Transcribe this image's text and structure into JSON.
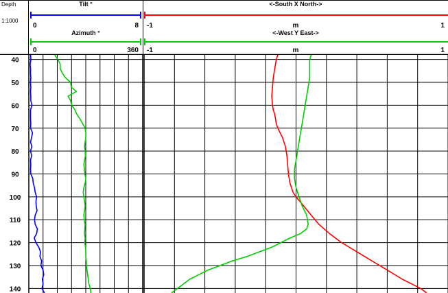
{
  "header": {
    "depth_label": "Depth",
    "scale_label": "1:1000",
    "tilt": {
      "title": "Tilt °",
      "min": "0",
      "max": "8",
      "color": "#0000ff"
    },
    "azimuth": {
      "title": "Azimuth °",
      "min": "0",
      "max": "360",
      "color": "#00cc00"
    },
    "x_track": {
      "title": "<-South  X  North->",
      "unit": "m",
      "min": "-1",
      "max": "1",
      "color": "#ff0000"
    },
    "y_track": {
      "title": "<-West  Y  East->",
      "unit": "m",
      "min": "-1",
      "max": "1",
      "color": "#00cc00"
    }
  },
  "chart_data": {
    "type": "line",
    "orientation": "vertical depth log",
    "depth_range": [
      38,
      142
    ],
    "depth_ticks": [
      "40",
      "50",
      "60",
      "70",
      "80",
      "90",
      "100",
      "110",
      "120",
      "130",
      "140"
    ],
    "grid": true,
    "tracks": [
      {
        "name": "tilt-azimuth-track",
        "series": [
          {
            "name": "Tilt °",
            "color": "#0000ff",
            "xlim": [
              0,
              8
            ],
            "points": [
              [
                38,
                0.12
              ],
              [
                40,
                0.15
              ],
              [
                42,
                0.09
              ],
              [
                44,
                0.12
              ],
              [
                46,
                0.12
              ],
              [
                48,
                0.14
              ],
              [
                50,
                0.12
              ],
              [
                52,
                0.14
              ],
              [
                54,
                0.12
              ],
              [
                56,
                0.14
              ],
              [
                58,
                0.14
              ],
              [
                60,
                0.22
              ],
              [
                62,
                0.12
              ],
              [
                64,
                0.12
              ],
              [
                66,
                0.12
              ],
              [
                68,
                0.14
              ],
              [
                70,
                0.12
              ],
              [
                72,
                0.26
              ],
              [
                74,
                0.2
              ],
              [
                76,
                0.12
              ],
              [
                78,
                0.21
              ],
              [
                80,
                0.12
              ],
              [
                82,
                0.2
              ],
              [
                84,
                0.12
              ],
              [
                86,
                0.14
              ],
              [
                88,
                0.12
              ],
              [
                90,
                0.14
              ],
              [
                92,
                0.28
              ],
              [
                94,
                0.31
              ],
              [
                96,
                0.4
              ],
              [
                98,
                0.45
              ],
              [
                100,
                0.55
              ],
              [
                102,
                0.5
              ],
              [
                104,
                0.52
              ],
              [
                106,
                0.58
              ],
              [
                108,
                0.45
              ],
              [
                110,
                0.4
              ],
              [
                112,
                0.45
              ],
              [
                114,
                0.6
              ],
              [
                116,
                0.55
              ],
              [
                118,
                0.38
              ],
              [
                120,
                0.5
              ],
              [
                122,
                0.7
              ],
              [
                124,
                0.82
              ],
              [
                126,
                0.78
              ],
              [
                128,
                0.9
              ],
              [
                130,
                0.85
              ],
              [
                132,
                1.0
              ],
              [
                134,
                1.05
              ],
              [
                136,
                0.95
              ],
              [
                138,
                1.0
              ],
              [
                140,
                0.92
              ],
              [
                142,
                1.1
              ]
            ]
          },
          {
            "name": "Azimuth °",
            "color": "#00cc00",
            "xlim": [
              0,
              360
            ],
            "points": [
              [
                38,
                82
              ],
              [
                40,
                92
              ],
              [
                42,
                99
              ],
              [
                44,
                99
              ],
              [
                46,
                106
              ],
              [
                48,
                116
              ],
              [
                50,
                132
              ],
              [
                52,
                134
              ],
              [
                54,
                150
              ],
              [
                56,
                124
              ],
              [
                58,
                132
              ],
              [
                60,
                136
              ],
              [
                62,
                146
              ],
              [
                64,
                152
              ],
              [
                66,
                162
              ],
              [
                68,
                170
              ],
              [
                70,
                178
              ],
              [
                72,
                180
              ],
              [
                74,
                180
              ],
              [
                76,
                178
              ],
              [
                78,
                176
              ],
              [
                80,
                178
              ],
              [
                82,
                179
              ],
              [
                84,
                176
              ],
              [
                86,
                174
              ],
              [
                88,
                176
              ],
              [
                90,
                177
              ],
              [
                92,
                180
              ],
              [
                94,
                178
              ],
              [
                96,
                174
              ],
              [
                98,
                172
              ],
              [
                100,
                174
              ],
              [
                102,
                176
              ],
              [
                104,
                178
              ],
              [
                106,
                176
              ],
              [
                108,
                174
              ],
              [
                110,
                175
              ],
              [
                112,
                178
              ],
              [
                114,
                177
              ],
              [
                116,
                176
              ],
              [
                118,
                178
              ],
              [
                120,
                177
              ],
              [
                122,
                179
              ],
              [
                124,
                180
              ],
              [
                126,
                180
              ],
              [
                128,
                182
              ],
              [
                130,
                182
              ],
              [
                132,
                184
              ],
              [
                134,
                186
              ],
              [
                136,
                188
              ],
              [
                138,
                190
              ],
              [
                140,
                194
              ],
              [
                142,
                196
              ]
            ]
          }
        ]
      },
      {
        "name": "xy-displacement-track",
        "series": [
          {
            "name": "<-South  X  North->",
            "color": "#ff0000",
            "xlim": [
              -1,
              1
            ],
            "points": [
              [
                38,
                -0.12
              ],
              [
                40,
                -0.13
              ],
              [
                44,
                -0.14
              ],
              [
                48,
                -0.15
              ],
              [
                52,
                -0.155
              ],
              [
                56,
                -0.16
              ],
              [
                60,
                -0.155
              ],
              [
                62,
                -0.15
              ],
              [
                64,
                -0.14
              ],
              [
                68,
                -0.13
              ],
              [
                70,
                -0.12
              ],
              [
                74,
                -0.09
              ],
              [
                78,
                -0.07
              ],
              [
                82,
                -0.06
              ],
              [
                86,
                -0.055
              ],
              [
                90,
                -0.05
              ],
              [
                94,
                -0.04
              ],
              [
                96,
                -0.03
              ],
              [
                98,
                -0.02
              ],
              [
                100,
                0.0
              ],
              [
                104,
                0.05
              ],
              [
                108,
                0.1
              ],
              [
                112,
                0.15
              ],
              [
                116,
                0.22
              ],
              [
                120,
                0.3
              ],
              [
                124,
                0.4
              ],
              [
                128,
                0.5
              ],
              [
                132,
                0.6
              ],
              [
                136,
                0.7
              ],
              [
                138,
                0.76
              ],
              [
                140,
                0.82
              ],
              [
                142,
                0.86
              ]
            ]
          },
          {
            "name": "<-West  Y  East->",
            "color": "#00cc00",
            "xlim": [
              -1,
              1
            ],
            "points": [
              [
                38,
                0.1
              ],
              [
                40,
                0.09
              ],
              [
                44,
                0.09
              ],
              [
                48,
                0.09
              ],
              [
                52,
                0.08
              ],
              [
                56,
                0.07
              ],
              [
                60,
                0.06
              ],
              [
                64,
                0.05
              ],
              [
                68,
                0.04
              ],
              [
                72,
                0.03
              ],
              [
                76,
                0.02
              ],
              [
                80,
                0.01
              ],
              [
                84,
                0.0
              ],
              [
                88,
                -0.01
              ],
              [
                92,
                -0.01
              ],
              [
                96,
                0.0
              ],
              [
                100,
                0.02
              ],
              [
                104,
                0.04
              ],
              [
                108,
                0.07
              ],
              [
                112,
                0.08
              ],
              [
                114,
                0.07
              ],
              [
                116,
                0.03
              ],
              [
                118,
                -0.04
              ],
              [
                120,
                -0.1
              ],
              [
                122,
                -0.16
              ],
              [
                124,
                -0.24
              ],
              [
                126,
                -0.32
              ],
              [
                128,
                -0.42
              ],
              [
                130,
                -0.5
              ],
              [
                132,
                -0.58
              ],
              [
                134,
                -0.64
              ],
              [
                136,
                -0.7
              ],
              [
                138,
                -0.74
              ],
              [
                140,
                -0.78
              ],
              [
                142,
                -0.82
              ]
            ]
          }
        ]
      }
    ]
  }
}
